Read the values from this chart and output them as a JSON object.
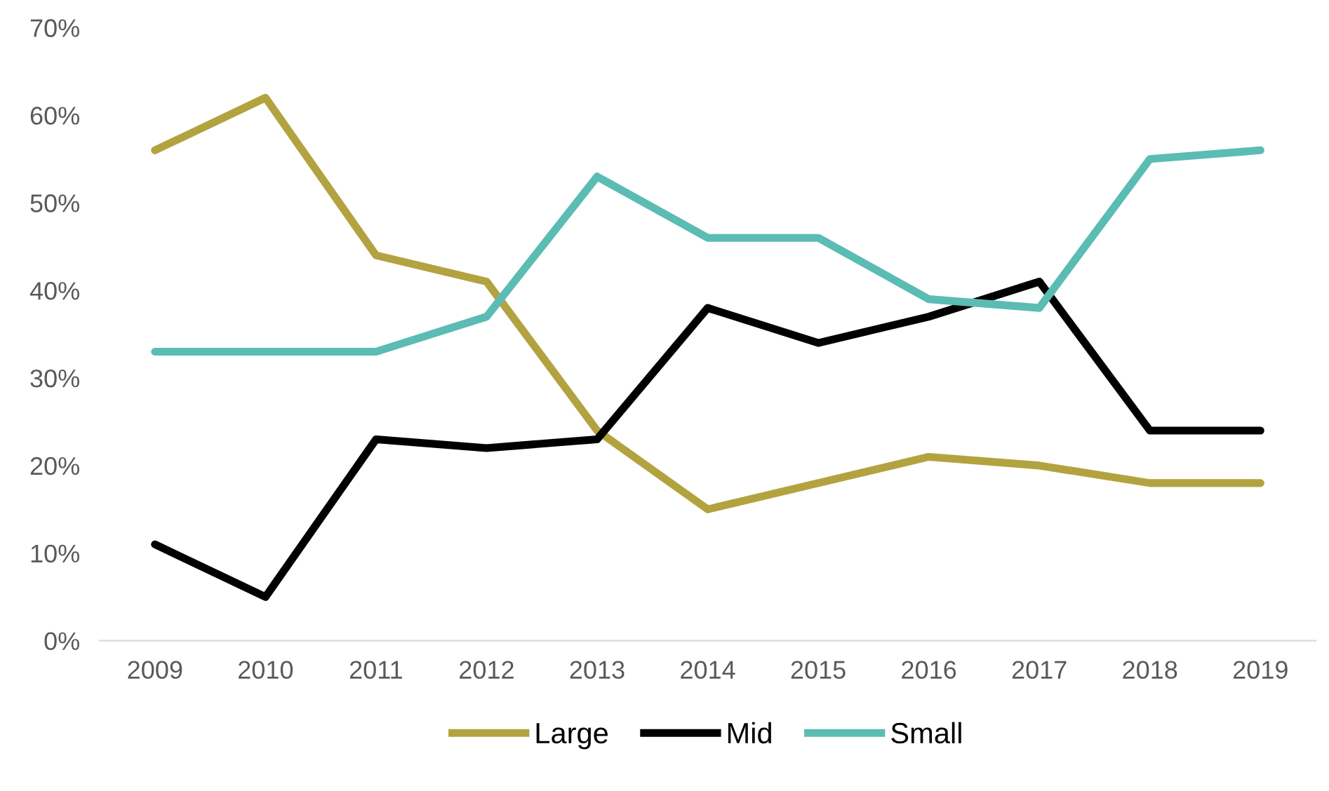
{
  "chart_data": {
    "type": "line",
    "categories": [
      "2009",
      "2010",
      "2011",
      "2012",
      "2013",
      "2014",
      "2015",
      "2016",
      "2017",
      "2018",
      "2019"
    ],
    "series": [
      {
        "name": "Large",
        "color": "#b3a340",
        "values": [
          56,
          62,
          44,
          41,
          24,
          15,
          18,
          21,
          20,
          18,
          18
        ]
      },
      {
        "name": "Mid",
        "color": "#000000",
        "values": [
          11,
          5,
          23,
          22,
          23,
          38,
          34,
          37,
          41,
          24,
          24
        ]
      },
      {
        "name": "Small",
        "color": "#5bbcb4",
        "values": [
          33,
          33,
          33,
          37,
          53,
          46,
          46,
          39,
          38,
          55,
          56
        ]
      }
    ],
    "ylim": [
      0,
      70
    ],
    "yticks": [
      {
        "value": 0,
        "label": "0%"
      },
      {
        "value": 10,
        "label": "10%"
      },
      {
        "value": 20,
        "label": "20%"
      },
      {
        "value": 30,
        "label": "30%"
      },
      {
        "value": 40,
        "label": "40%"
      },
      {
        "value": 50,
        "label": "50%"
      },
      {
        "value": 60,
        "label": "60%"
      },
      {
        "value": 70,
        "label": "70%"
      }
    ],
    "grid": false,
    "legend": "bottom",
    "marker": "none",
    "line_style": "solid"
  }
}
